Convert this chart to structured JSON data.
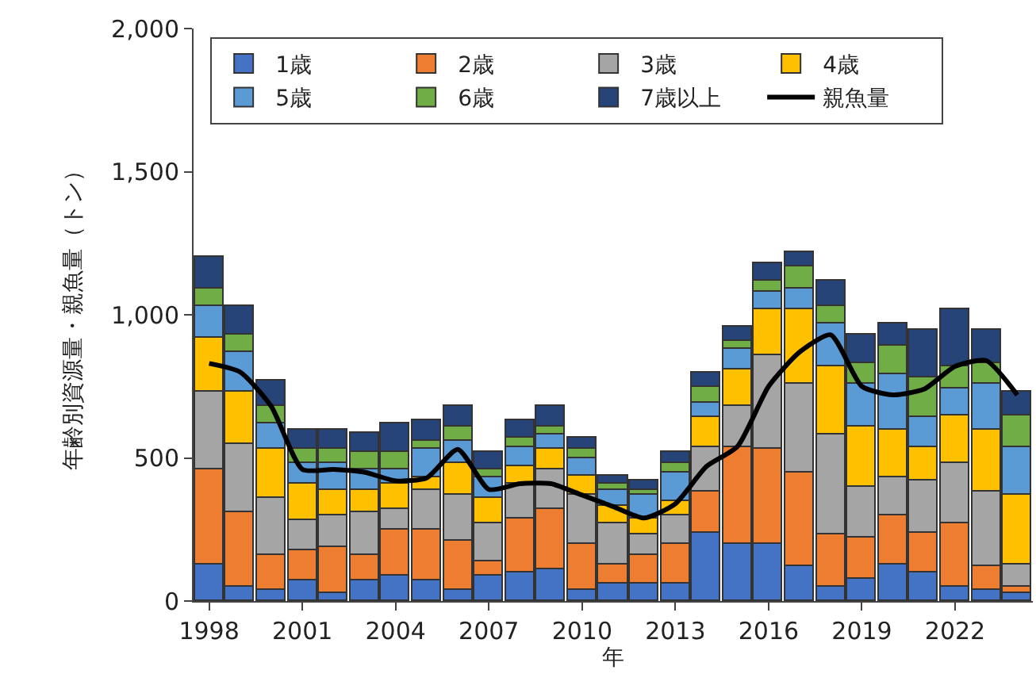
{
  "chart_data": {
    "type": "bar",
    "stacked": true,
    "xlabel": "年",
    "ylabel": "年齢別資源量・親魚量（トン）",
    "x": [
      1998,
      1999,
      2000,
      2001,
      2002,
      2003,
      2004,
      2005,
      2006,
      2007,
      2008,
      2009,
      2010,
      2011,
      2012,
      2013,
      2014,
      2015,
      2016,
      2017,
      2018,
      2019,
      2020,
      2021,
      2022,
      2023,
      2024
    ],
    "xlim": [
      1997.5,
      2024.5
    ],
    "xticks": [
      1998,
      2001,
      2004,
      2007,
      2010,
      2013,
      2016,
      2019,
      2022
    ],
    "ylim": [
      0,
      2000
    ],
    "yticks": [
      0,
      500,
      {
        "value": 1000,
        "label": "1,000"
      },
      {
        "value": 1500,
        "label": "1,500"
      },
      {
        "value": 2000,
        "label": "2,000"
      }
    ],
    "legend": "top",
    "series": [
      {
        "name": "1歳",
        "color": "#4472c4",
        "values": [
          130,
          50,
          40,
          70,
          30,
          70,
          90,
          70,
          40,
          90,
          100,
          110,
          40,
          60,
          60,
          60,
          240,
          200,
          200,
          120,
          50,
          80,
          130,
          100,
          50,
          40,
          30
        ]
      },
      {
        "name": "2歳",
        "color": "#ed7d31",
        "values": [
          330,
          260,
          120,
          110,
          160,
          90,
          160,
          180,
          170,
          50,
          190,
          210,
          160,
          70,
          100,
          140,
          140,
          340,
          330,
          330,
          180,
          140,
          170,
          140,
          220,
          80,
          20
        ]
      },
      {
        "name": "3歳",
        "color": "#a5a5a5",
        "values": [
          270,
          240,
          200,
          100,
          110,
          150,
          70,
          140,
          160,
          130,
          120,
          140,
          170,
          140,
          70,
          100,
          160,
          140,
          330,
          310,
          350,
          180,
          130,
          180,
          210,
          260,
          80
        ]
      },
      {
        "name": "4歳",
        "color": "#ffc000",
        "values": [
          190,
          180,
          170,
          130,
          90,
          80,
          90,
          40,
          110,
          90,
          60,
          70,
          70,
          60,
          60,
          50,
          100,
          130,
          160,
          260,
          240,
          210,
          170,
          120,
          170,
          220,
          240
        ]
      },
      {
        "name": "5歳",
        "color": "#5b9bd5",
        "values": [
          110,
          140,
          90,
          70,
          90,
          70,
          50,
          100,
          80,
          70,
          70,
          50,
          60,
          60,
          80,
          100,
          50,
          70,
          60,
          70,
          150,
          150,
          190,
          100,
          90,
          160,
          170
        ]
      },
      {
        "name": "6歳",
        "color": "#70ad47",
        "values": [
          60,
          60,
          60,
          50,
          50,
          60,
          60,
          30,
          50,
          30,
          30,
          30,
          30,
          20,
          20,
          30,
          60,
          30,
          40,
          80,
          60,
          70,
          100,
          140,
          80,
          70,
          110
        ]
      },
      {
        "name": "7歳以上",
        "color": "#264478",
        "values": [
          110,
          100,
          90,
          70,
          70,
          70,
          100,
          70,
          70,
          60,
          60,
          70,
          40,
          30,
          30,
          40,
          50,
          50,
          60,
          50,
          90,
          100,
          80,
          170,
          200,
          120,
          80
        ]
      },
      {
        "name": "親魚量",
        "type": "line",
        "color": "#000000",
        "values": [
          830,
          800,
          680,
          460,
          460,
          450,
          420,
          430,
          530,
          390,
          410,
          410,
          370,
          330,
          290,
          340,
          470,
          540,
          750,
          870,
          930,
          750,
          720,
          740,
          820,
          840,
          720
        ]
      }
    ]
  }
}
